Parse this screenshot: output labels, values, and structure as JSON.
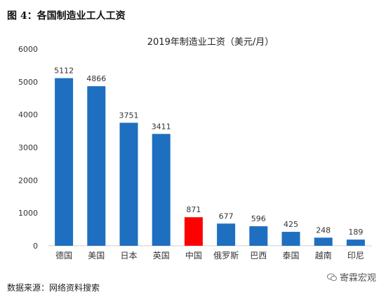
{
  "figure_caption": "图 4：各国制造业工人工资",
  "source_note": "数据来源：网络资料搜索",
  "watermark": "寄霖宏观",
  "colors": {
    "bar": "#1f6fc0",
    "highlight": "#ff0000"
  },
  "chart_data": {
    "type": "bar",
    "title": "2019年制造业工资（美元/月）",
    "categories": [
      "德国",
      "美国",
      "日本",
      "英国",
      "中国",
      "俄罗斯",
      "巴西",
      "泰国",
      "越南",
      "印尼"
    ],
    "values": [
      5112,
      4866,
      3751,
      3411,
      871,
      677,
      596,
      425,
      248,
      189
    ],
    "highlight_category": "中国",
    "ylim": [
      0,
      6000
    ],
    "yticks": [
      0,
      1000,
      2000,
      3000,
      4000,
      5000,
      6000
    ],
    "grid": false,
    "legend": "none",
    "xlabel": "",
    "ylabel": ""
  }
}
